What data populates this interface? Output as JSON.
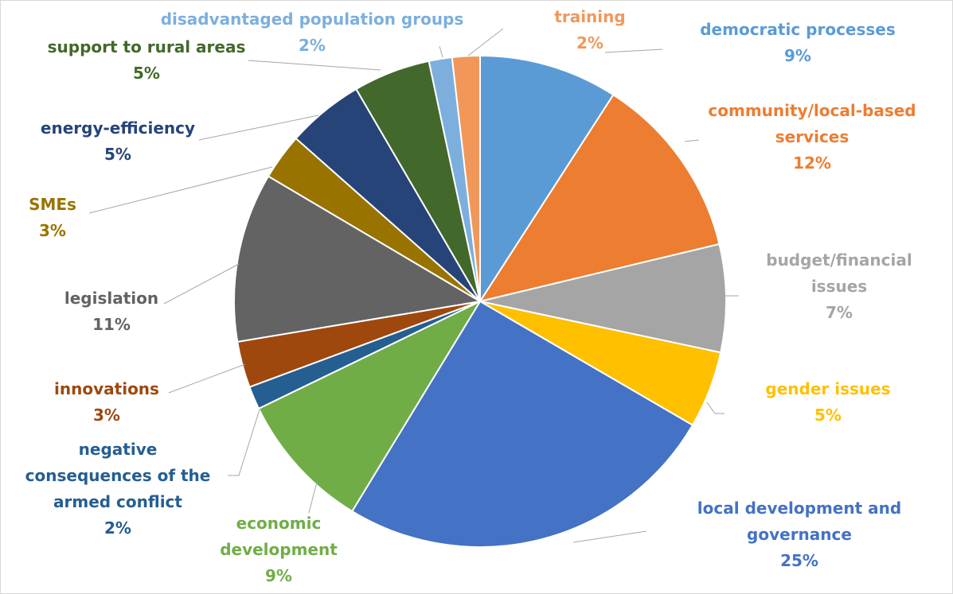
{
  "chart_data": {
    "type": "pie",
    "title": "",
    "start_angle_deg": 0,
    "direction": "clockwise",
    "slices": [
      {
        "label": "democratic processes",
        "label_lines": [
          "democratic processes"
        ],
        "value": 9,
        "display": "9%",
        "color": "#5B9BD5"
      },
      {
        "label": "community/local-based services",
        "label_lines": [
          "community/local-based",
          "services"
        ],
        "value": 12,
        "display": "12%",
        "color": "#ED7D31"
      },
      {
        "label": "budget/financial issues",
        "label_lines": [
          "budget/financial",
          "issues"
        ],
        "value": 7,
        "display": "7%",
        "color": "#A5A5A5"
      },
      {
        "label": "gender issues",
        "label_lines": [
          "gender issues"
        ],
        "value": 5,
        "display": "5%",
        "color": "#FFC000"
      },
      {
        "label": "local development and governance",
        "label_lines": [
          "local development and",
          "governance"
        ],
        "value": 25,
        "display": "25%",
        "color": "#4472C4"
      },
      {
        "label": "economic development",
        "label_lines": [
          "economic",
          "development"
        ],
        "value": 9,
        "display": "9%",
        "color": "#70AD47"
      },
      {
        "label": "negative consequences of the armed conflict",
        "label_lines": [
          "negative",
          "consequences of the",
          "armed conflict"
        ],
        "value": 1.5,
        "display": "2%",
        "color": "#255E91"
      },
      {
        "label": "innovations",
        "label_lines": [
          "innovations"
        ],
        "value": 3,
        "display": "3%",
        "color": "#9E480E"
      },
      {
        "label": "legislation",
        "label_lines": [
          "legislation"
        ],
        "value": 11,
        "display": "11%",
        "color": "#636363"
      },
      {
        "label": "SMEs",
        "label_lines": [
          "SMEs"
        ],
        "value": 3,
        "display": "3%",
        "color": "#997300"
      },
      {
        "label": "energy-efficiency",
        "label_lines": [
          "energy-efficiency"
        ],
        "value": 5,
        "display": "5%",
        "color": "#264478"
      },
      {
        "label": "support to rural areas",
        "label_lines": [
          "support to rural areas"
        ],
        "value": 5,
        "display": "5%",
        "color": "#43682B"
      },
      {
        "label": "disadvantaged population groups",
        "label_lines": [
          "disadvantaged population groups"
        ],
        "value": 1.5,
        "display": "2%",
        "color": "#7CAFDD"
      },
      {
        "label": "training",
        "label_lines": [
          "training"
        ],
        "value": 1.8,
        "display": "2%",
        "color": "#F1975A"
      }
    ],
    "legend": "none",
    "data_labels": "outside with leader lines"
  }
}
